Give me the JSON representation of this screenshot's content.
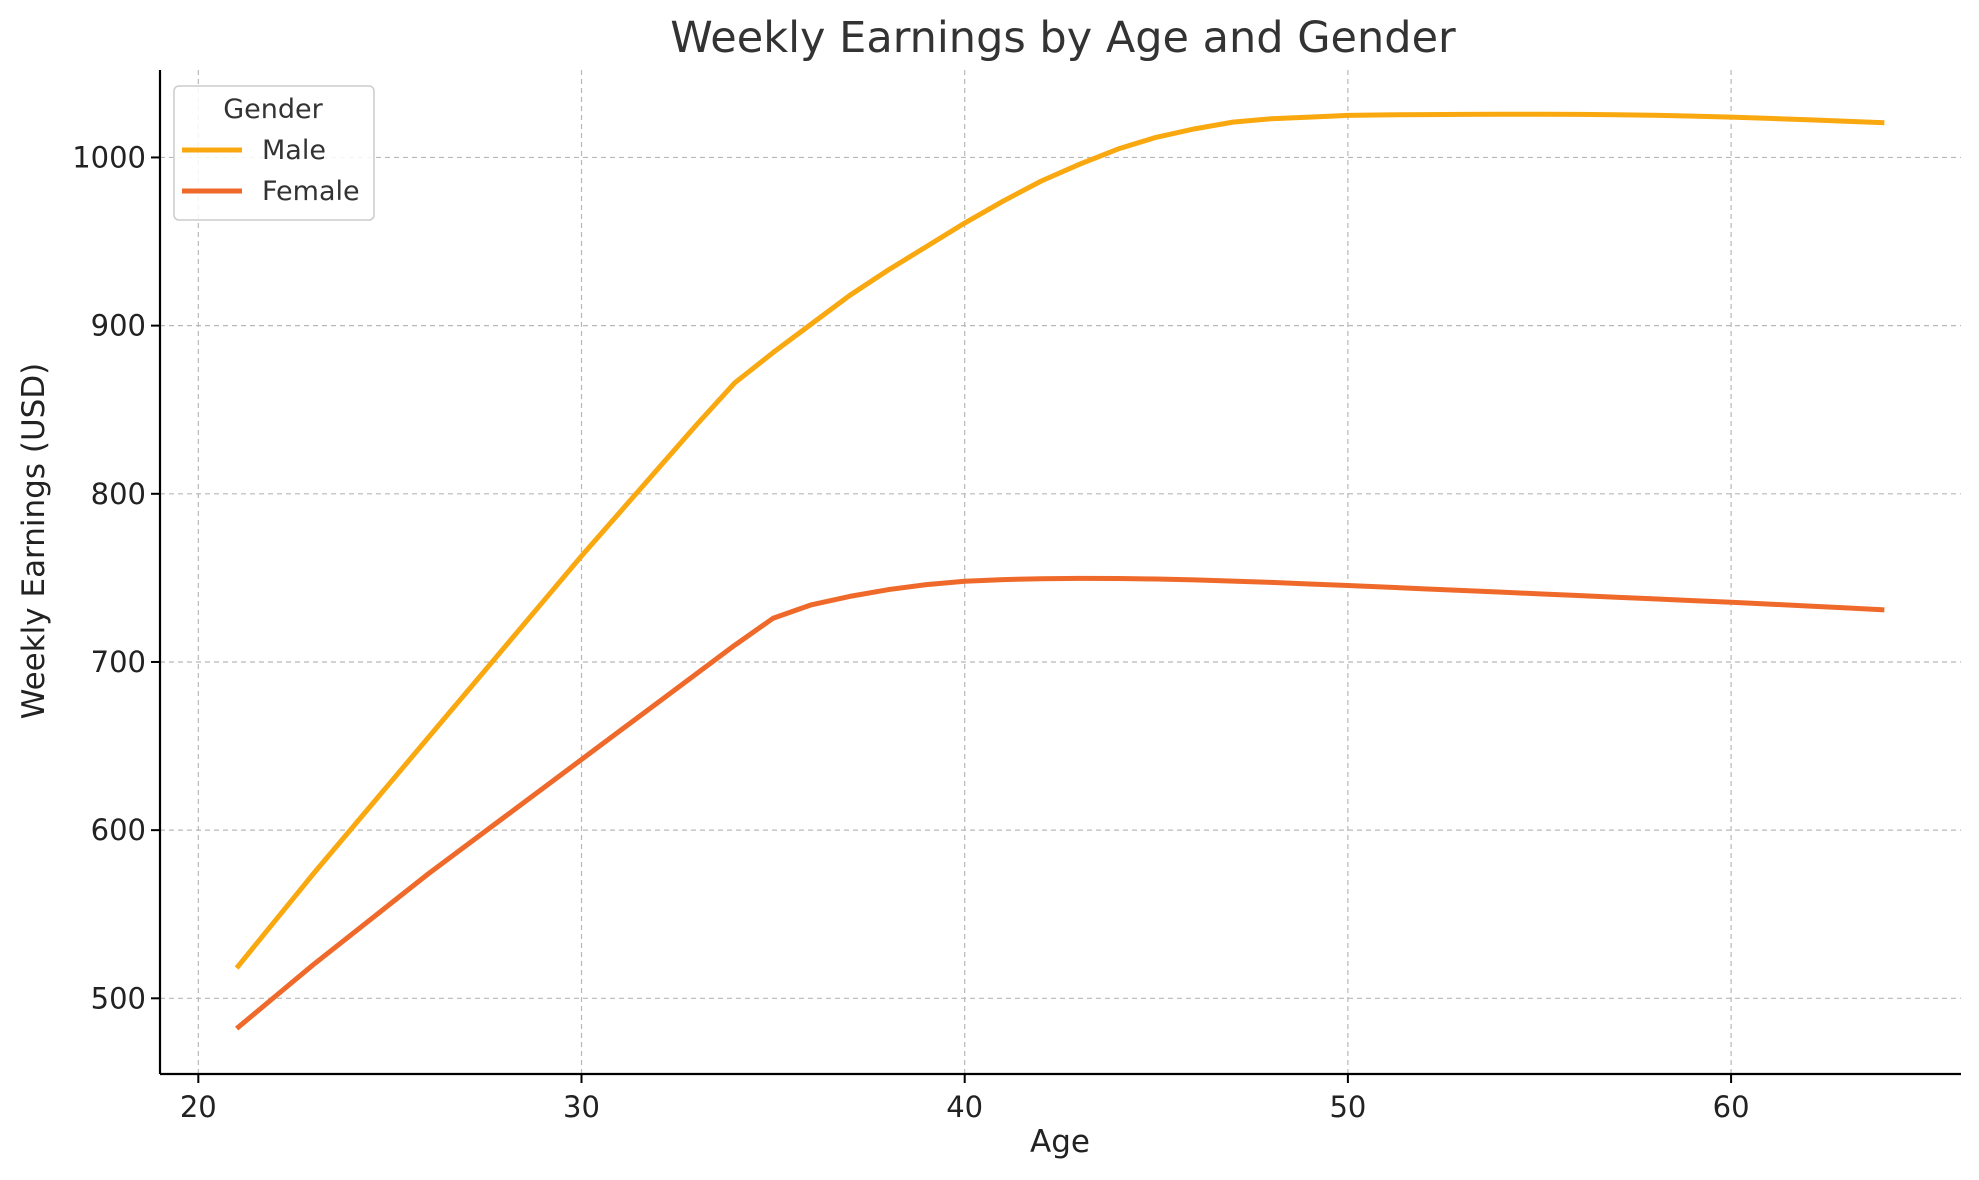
{
  "chart_data": {
    "type": "line",
    "title": "Weekly Earnings by Age and Gender",
    "xlabel": "Age",
    "ylabel": "Weekly Earnings (USD)",
    "xlim": [
      19,
      66
    ],
    "ylim": [
      455,
      1052
    ],
    "xticks": [
      20,
      30,
      40,
      50,
      60
    ],
    "yticks": [
      500,
      600,
      700,
      800,
      900,
      1000
    ],
    "grid": true,
    "legend": {
      "title": "Gender",
      "placement": "top-left"
    },
    "series": [
      {
        "name": "Male",
        "color": "#f9a80f",
        "x": [
          21,
          22,
          23,
          24,
          25,
          26,
          27,
          28,
          29,
          30,
          31,
          32,
          33,
          34,
          35,
          36,
          37,
          38,
          39,
          40,
          41,
          42,
          43,
          44,
          45,
          46,
          47,
          48,
          49,
          50,
          51,
          52,
          53,
          54,
          55,
          56,
          57,
          58,
          59,
          60,
          61,
          62,
          63,
          64
        ],
        "y": [
          518,
          546,
          574,
          601,
          628,
          655,
          682,
          709,
          736,
          763,
          789,
          815,
          841,
          866,
          884,
          901,
          918,
          933,
          947,
          961,
          974,
          986,
          996,
          1005,
          1012,
          1017,
          1021,
          1023,
          1024,
          1025,
          1025.3,
          1025.5,
          1025.6,
          1025.7,
          1025.7,
          1025.6,
          1025.4,
          1025.1,
          1024.6,
          1024,
          1023.2,
          1022.4,
          1021.5,
          1020.6
        ]
      },
      {
        "name": "Female",
        "color": "#ef6a2a",
        "x": [
          21,
          22,
          23,
          24,
          25,
          26,
          27,
          28,
          29,
          30,
          31,
          32,
          33,
          34,
          35,
          36,
          37,
          38,
          39,
          40,
          41,
          42,
          43,
          44,
          45,
          46,
          47,
          48,
          49,
          50,
          51,
          52,
          53,
          54,
          55,
          56,
          57,
          58,
          59,
          60,
          61,
          62,
          63,
          64
        ],
        "y": [
          482,
          501,
          520,
          538,
          556,
          574,
          591,
          608,
          625,
          642,
          659,
          676,
          693,
          710,
          726,
          734,
          739,
          743,
          746,
          748,
          749,
          749.5,
          749.7,
          749.6,
          749.3,
          748.8,
          748.1,
          747.3,
          746.4,
          745.5,
          744.5,
          743.5,
          742.5,
          741.5,
          740.5,
          739.5,
          738.5,
          737.5,
          736.5,
          735.5,
          734.4,
          733.3,
          732.2,
          731
        ]
      }
    ]
  }
}
